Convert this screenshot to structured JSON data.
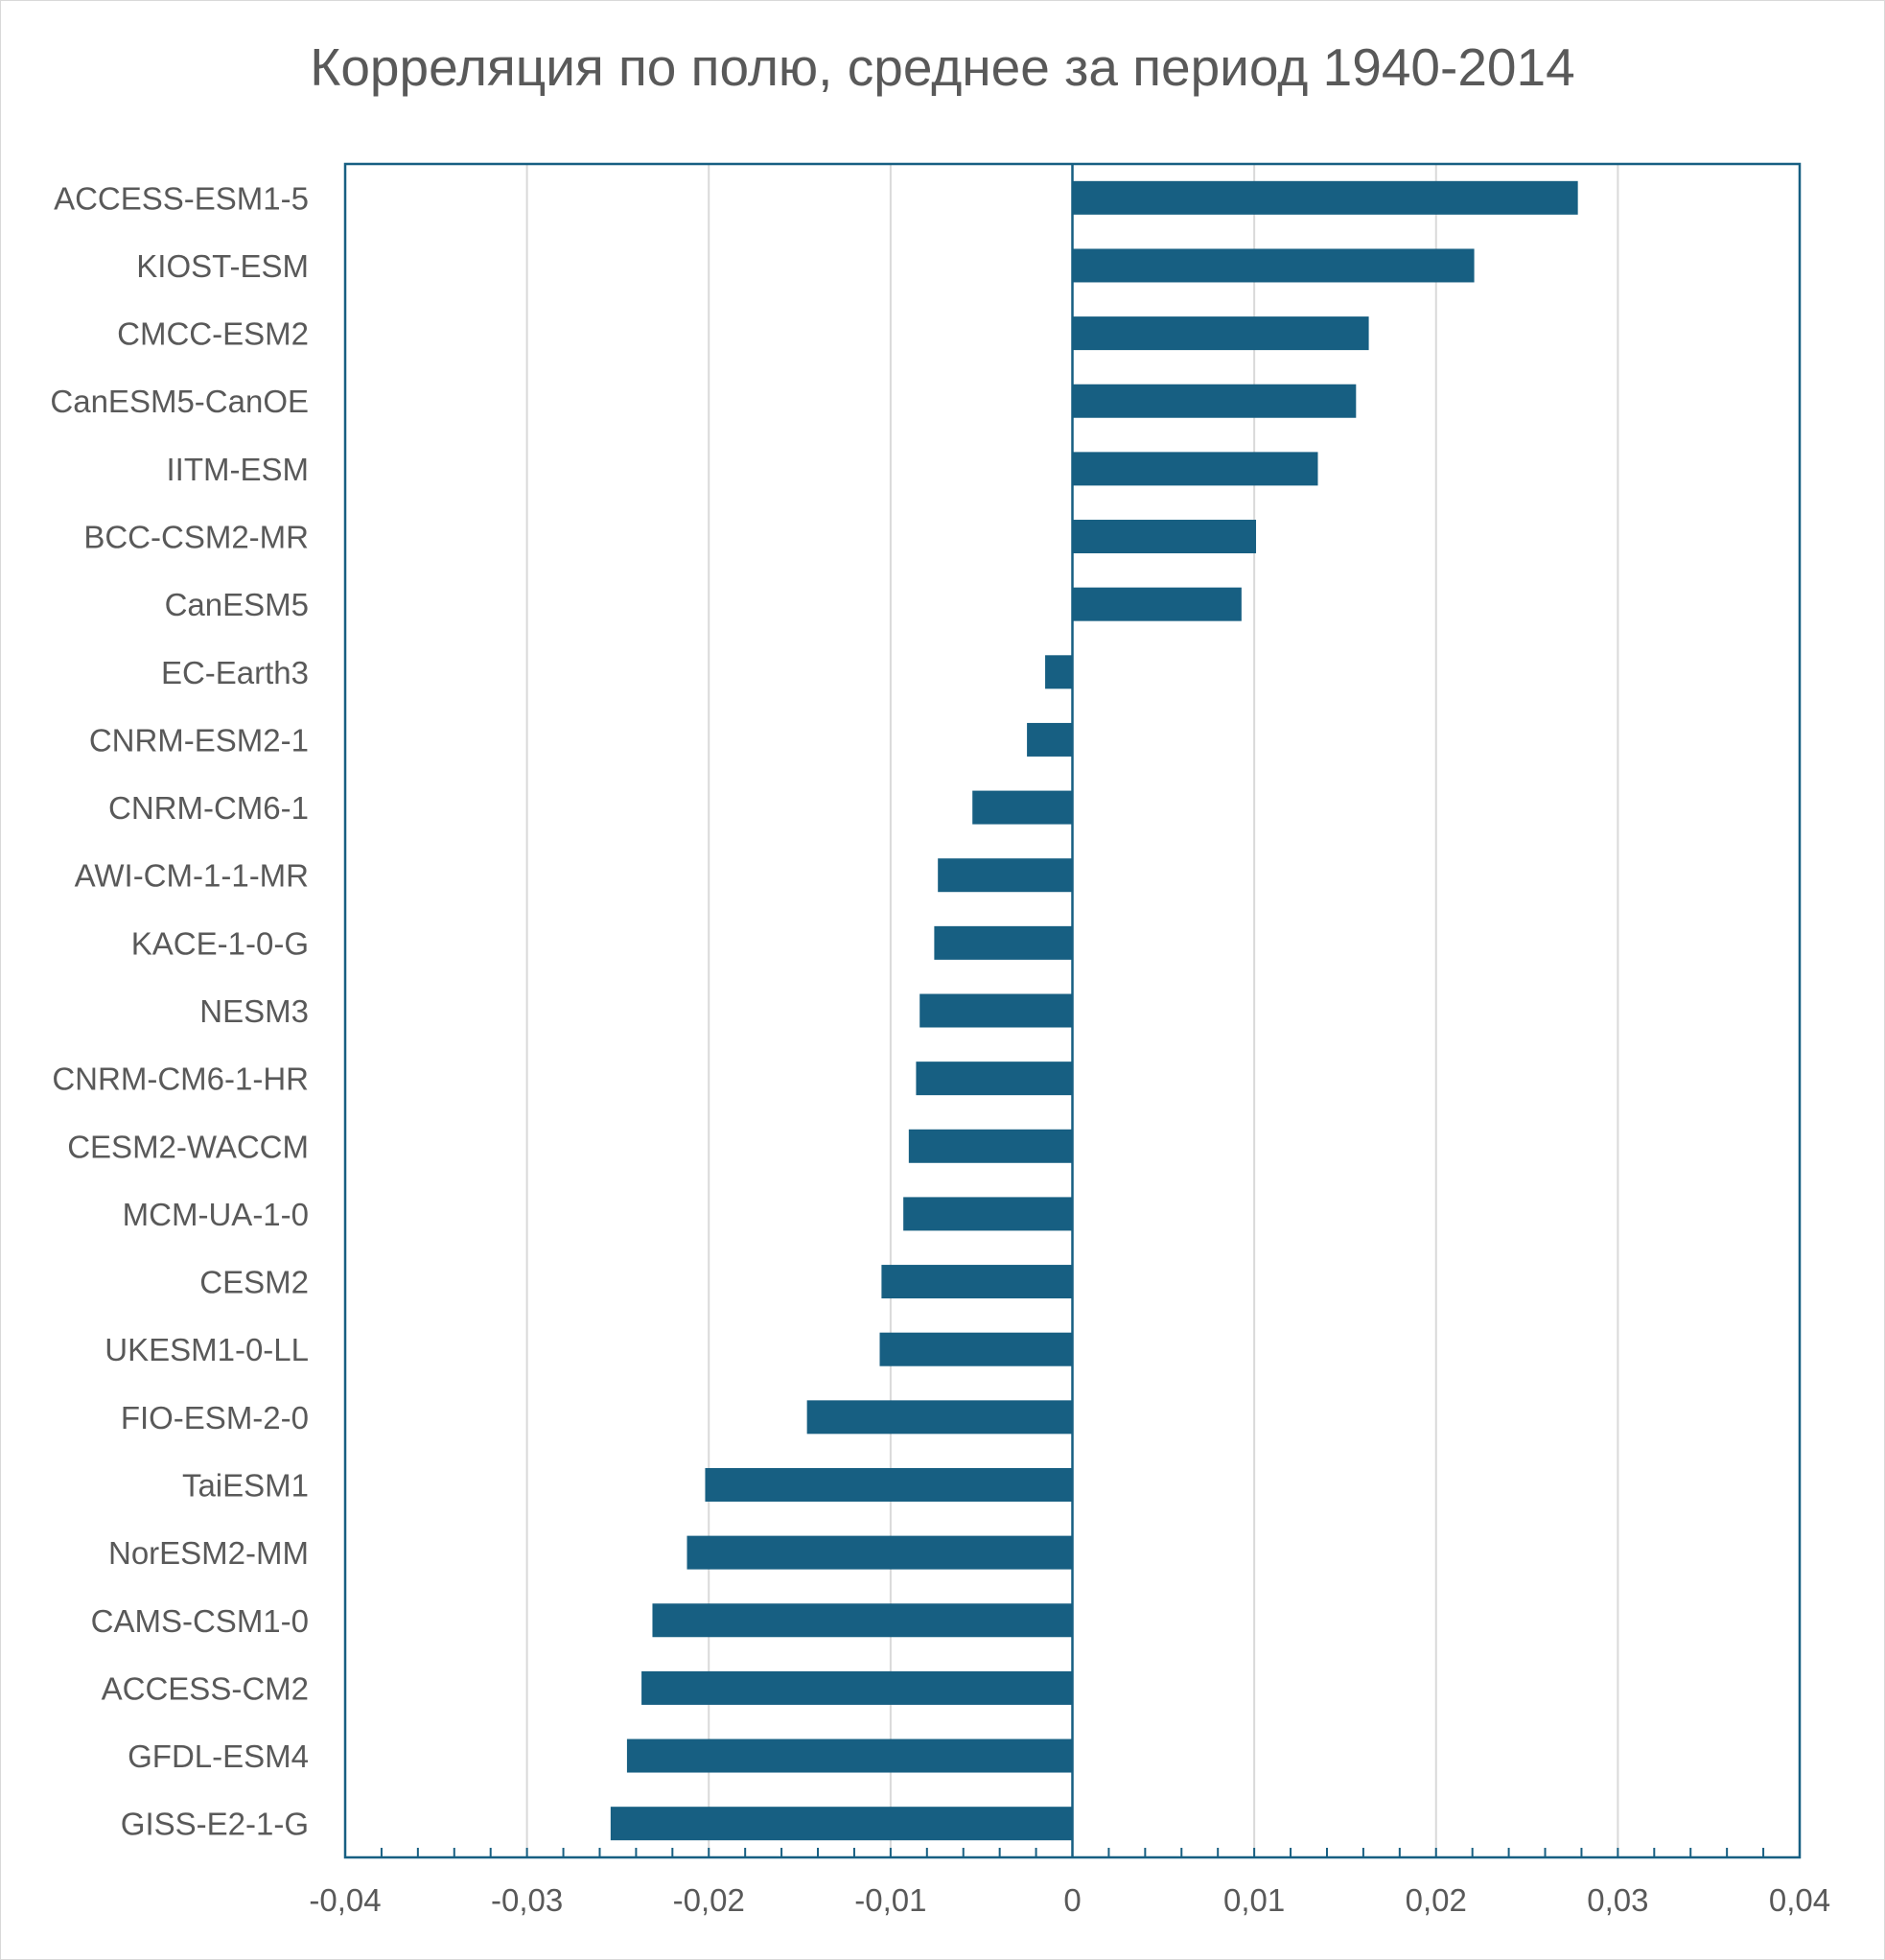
{
  "chart_data": {
    "type": "bar",
    "orientation": "horizontal",
    "title": "Корреляция по полю, среднее за период 1940-2014",
    "xlabel": "",
    "ylabel": "",
    "xlim": [
      -0.04,
      0.04
    ],
    "xticks": [
      -0.04,
      -0.03,
      -0.02,
      -0.01,
      0,
      0.01,
      0.02,
      0.03,
      0.04
    ],
    "xtick_labels": [
      "-0,04",
      "-0,03",
      "-0,02",
      "-0,01",
      "0",
      "0,01",
      "0,02",
      "0,03",
      "0,04"
    ],
    "grid": "vertical",
    "legend": "none",
    "bar_color": "#175f82",
    "categories": [
      "ACCESS-ESM1-5",
      "KIOST-ESM",
      "CMCC-ESM2",
      "CanESM5-CanOE",
      "IITM-ESM",
      "BCC-CSM2-MR",
      "CanESM5",
      "EC-Earth3",
      "CNRM-ESM2-1",
      "CNRM-CM6-1",
      "AWI-CM-1-1-MR",
      "KACE-1-0-G",
      "NESM3",
      "CNRM-CM6-1-HR",
      "CESM2-WACCM",
      "MCM-UA-1-0",
      "CESM2",
      "UKESM1-0-LL",
      "FIO-ESM-2-0",
      "TaiESM1",
      "NorESM2-MM",
      "CAMS-CSM1-0",
      "ACCESS-CM2",
      "GFDL-ESM4",
      "GISS-E2-1-G"
    ],
    "values": [
      0.0278,
      0.0221,
      0.0163,
      0.0156,
      0.0135,
      0.0101,
      0.0093,
      -0.0015,
      -0.0025,
      -0.0055,
      -0.0074,
      -0.0076,
      -0.0084,
      -0.0086,
      -0.009,
      -0.0093,
      -0.0105,
      -0.0106,
      -0.0146,
      -0.0202,
      -0.0212,
      -0.0231,
      -0.0237,
      -0.0245,
      -0.0254
    ]
  }
}
